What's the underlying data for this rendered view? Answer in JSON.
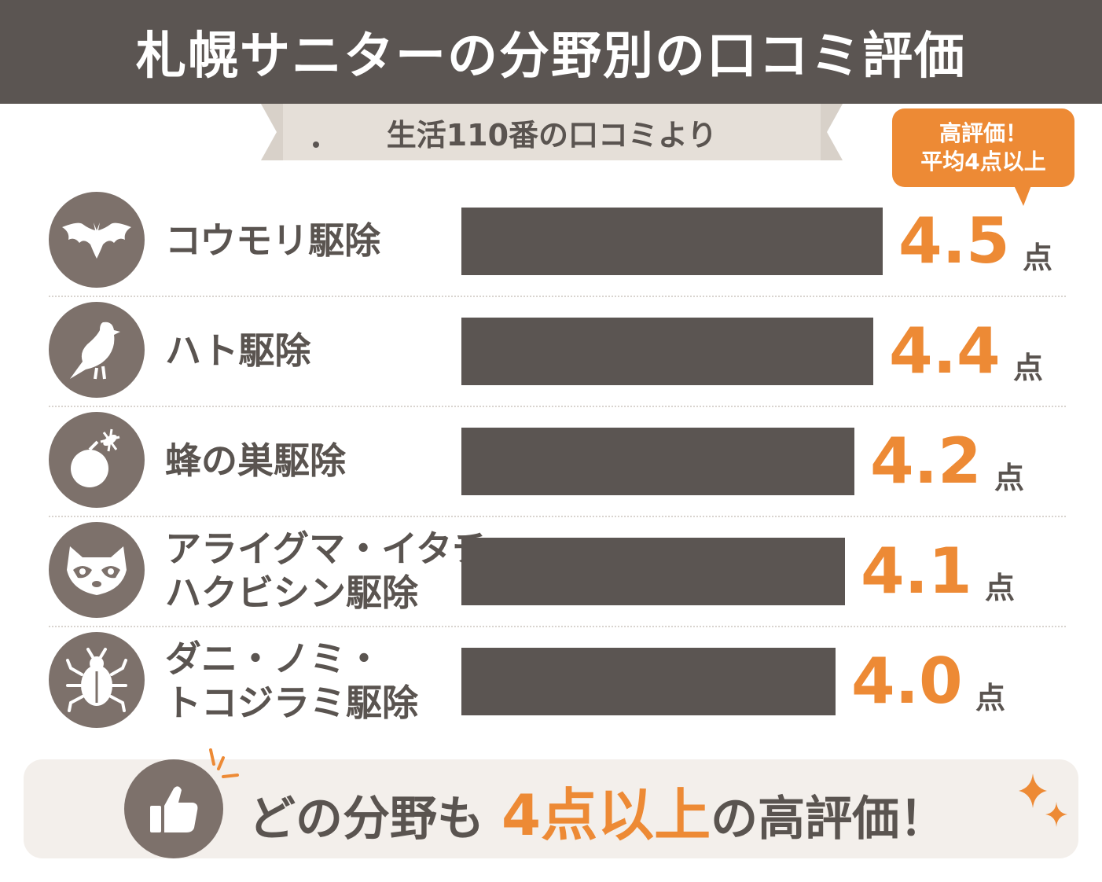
{
  "title": "札幌サニターの分野別の口コミ評価",
  "subtitle": "生活110番の口コミより",
  "badge": {
    "line1": "高評価！",
    "line2": "平均4点以上"
  },
  "chart_data": {
    "type": "bar",
    "orientation": "horizontal",
    "unit": "点",
    "categories": [
      "コウモリ駆除",
      "ハト駆除",
      "蜂の巣駆除",
      "アライグマ・イタチ・ハクビシン駆除",
      "ダニ・ノミ・トコジラミ駆除"
    ],
    "values": [
      4.5,
      4.4,
      4.2,
      4.1,
      4.0
    ],
    "value_labels": [
      "4.5",
      "4.4",
      "4.2",
      "4.1",
      "4.0"
    ],
    "label_lines": [
      [
        "コウモリ駆除"
      ],
      [
        "ハト駆除"
      ],
      [
        "蜂の巣駆除"
      ],
      [
        "アライグマ・イタチ・",
        "ハクビシン駆除"
      ],
      [
        "ダニ・ノミ・",
        "トコジラミ駆除"
      ]
    ],
    "icons": [
      "bat-icon",
      "pigeon-icon",
      "wasp-nest-icon",
      "raccoon-icon",
      "tick-icon"
    ],
    "colors": {
      "bar": "#5b5552",
      "value": "#ed8a35",
      "icon_bg": "#7d716b"
    }
  },
  "footer": {
    "pre": "どの分野も",
    "highlight": "4点以上",
    "post": "の高評価！"
  }
}
